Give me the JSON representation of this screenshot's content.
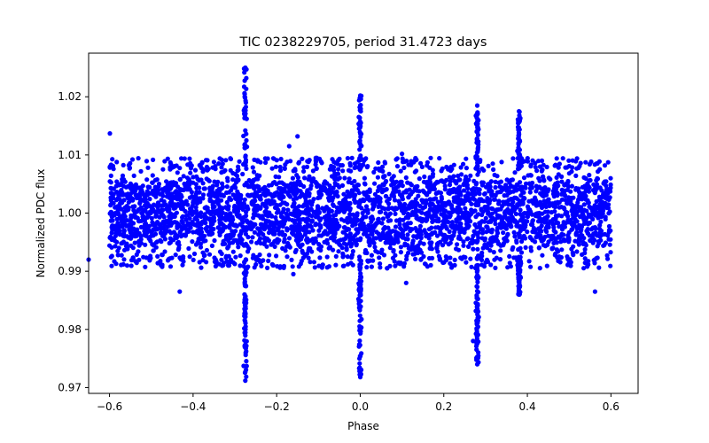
{
  "chart_data": {
    "type": "scatter",
    "title": "TIC 0238229705, period 31.4723 days",
    "xlabel": "Phase",
    "ylabel": "Normalized PDC flux",
    "xlim": [
      -0.65,
      0.665
    ],
    "ylim": [
      0.969,
      1.0275
    ],
    "xticks": [
      -0.6,
      -0.4,
      -0.2,
      0.0,
      0.2,
      0.4,
      0.6
    ],
    "xtick_labels": [
      "−0.6",
      "−0.4",
      "−0.2",
      "0.0",
      "0.2",
      "0.4",
      "0.6"
    ],
    "yticks": [
      0.97,
      0.98,
      0.99,
      1.0,
      1.01,
      1.02
    ],
    "ytick_labels": [
      "0.97",
      "0.98",
      "0.99",
      "1.00",
      "1.01",
      "1.02"
    ],
    "grid": false,
    "color": "#0000ff",
    "series": [
      {
        "name": "flux",
        "phase_range": [
          -0.6,
          0.6
        ],
        "band_center": 1.0,
        "band_halfwidth": 0.0075,
        "sparse_upper": 1.0095,
        "sparse_lower": 0.9905,
        "transits": [
          {
            "phase": 0.0,
            "min_flux": 0.9718,
            "max_flux": 1.0202
          },
          {
            "phase": -0.275,
            "min_flux": 0.9712,
            "max_flux": 1.025
          },
          {
            "phase": 0.28,
            "min_flux": 0.974,
            "max_flux": 1.0185
          },
          {
            "phase": 0.38,
            "min_flux": 0.986,
            "max_flux": 1.0175
          }
        ],
        "outliers": [
          [
            -0.599,
            1.0137
          ],
          [
            -0.432,
            0.9865
          ],
          [
            0.562,
            0.9865
          ],
          [
            0.5,
            0.9915
          ],
          [
            -0.65,
            0.992
          ],
          [
            0.11,
            0.988
          ],
          [
            -0.16,
            0.9895
          ],
          [
            0.1,
            1.0102
          ],
          [
            -0.17,
            1.0115
          ],
          [
            -0.15,
            1.0132
          ],
          [
            0.27,
            0.978
          ]
        ]
      }
    ]
  }
}
